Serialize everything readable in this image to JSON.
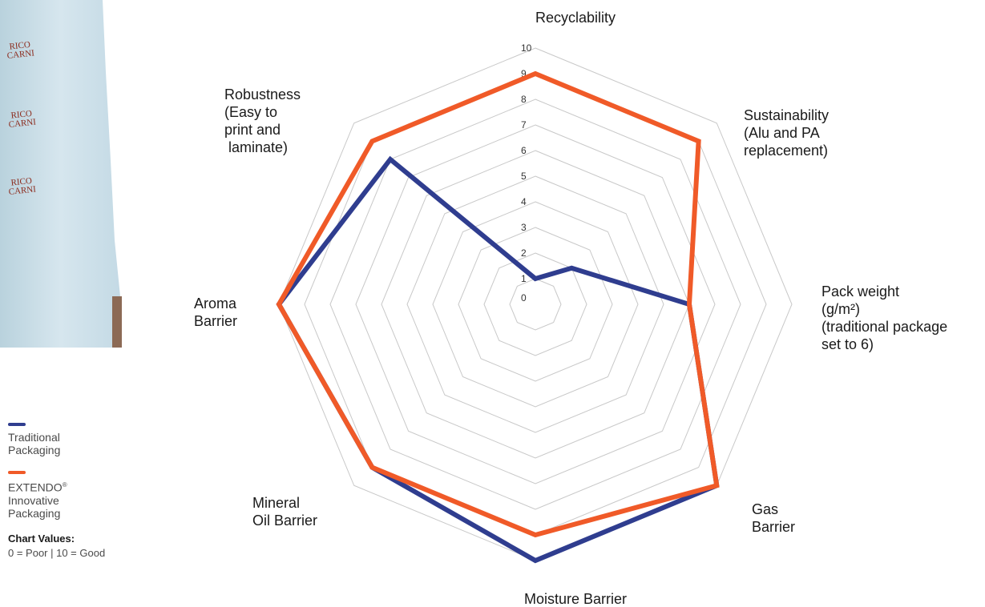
{
  "photo": {
    "brand_text": "RICO CARNI"
  },
  "legend": {
    "items": [
      {
        "label": "Traditional\nPackaging",
        "trademark": "",
        "color": "#2f3d8f"
      },
      {
        "label": "EXTENDO",
        "trademark": "®",
        "label_rest": "Innovative\nPackaging",
        "color": "#f05a28"
      }
    ]
  },
  "chart_values": {
    "title": "Chart Values:",
    "text": "0 = Poor | 10 = Good"
  },
  "chart_data": {
    "type": "radar",
    "axes": [
      {
        "label": [
          "Recyclability"
        ],
        "anchor": "middle"
      },
      {
        "label": [
          "Sustainability",
          "(Alu and PA",
          "replacement)"
        ],
        "anchor": "start"
      },
      {
        "label": [
          "Pack weight",
          "(g/m²)",
          "(traditional package",
          "set to 6)"
        ],
        "anchor": "start"
      },
      {
        "label": [
          "Gas",
          "Barrier"
        ],
        "anchor": "start"
      },
      {
        "label": [
          "Moisture Barrier"
        ],
        "anchor": "middle"
      },
      {
        "label": [
          "Mineral",
          "Oil Barrier"
        ],
        "anchor": "start"
      },
      {
        "label": [
          "Aroma",
          "Barrier"
        ],
        "anchor": "start"
      },
      {
        "label": [
          "Robustness",
          "(Easy to",
          "print and",
          " laminate)"
        ],
        "anchor": "start"
      }
    ],
    "ticks": [
      0,
      1,
      2,
      3,
      4,
      5,
      6,
      7,
      8,
      9,
      10
    ],
    "range": [
      0,
      10
    ],
    "grid": true,
    "series": [
      {
        "name": "Traditional Packaging",
        "color": "#2f3d8f",
        "values": [
          1,
          2,
          6,
          10,
          10,
          9,
          10,
          8
        ]
      },
      {
        "name": "EXTENDO Innovative Packaging",
        "color": "#f05a28",
        "values": [
          9,
          9,
          6,
          10,
          9,
          9,
          10,
          9
        ]
      }
    ]
  }
}
